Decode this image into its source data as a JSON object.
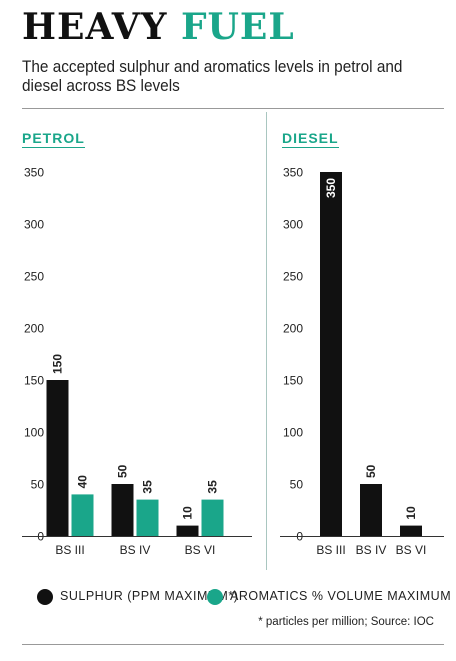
{
  "header": {
    "title_main": "HEAVY",
    "title_accent": "FUEL",
    "subtitle": "The accepted sulphur and aromatics levels in petrol and diesel across BS levels"
  },
  "colors": {
    "sulphur": "#111111",
    "aromatics": "#1aa68a",
    "accent": "#1aa68a"
  },
  "legend": {
    "sulphur": "SULPHUR (PPM MAXIMUM*)",
    "aromatics": "AROMATICS % VOLUME MAXIMUM"
  },
  "footnote": "* particles per million; Source: IOC",
  "chart_data": [
    {
      "type": "bar",
      "title": "PETROL",
      "categories": [
        "BS III",
        "BS IV",
        "BS VI"
      ],
      "yticks": [
        0,
        50,
        100,
        150,
        200,
        250,
        300,
        350
      ],
      "ylim": [
        0,
        350
      ],
      "series": [
        {
          "name": "SULPHUR (PPM MAXIMUM*)",
          "values": [
            150,
            50,
            10
          ]
        },
        {
          "name": "AROMATICS % VOLUME MAXIMUM",
          "values": [
            40,
            35,
            35
          ]
        }
      ]
    },
    {
      "type": "bar",
      "title": "DIESEL",
      "categories": [
        "BS III",
        "BS IV",
        "BS VI"
      ],
      "yticks": [
        0,
        50,
        100,
        150,
        200,
        250,
        300,
        350
      ],
      "ylim": [
        0,
        350
      ],
      "series": [
        {
          "name": "SULPHUR (PPM MAXIMUM*)",
          "values": [
            350,
            50,
            10
          ]
        }
      ]
    }
  ]
}
